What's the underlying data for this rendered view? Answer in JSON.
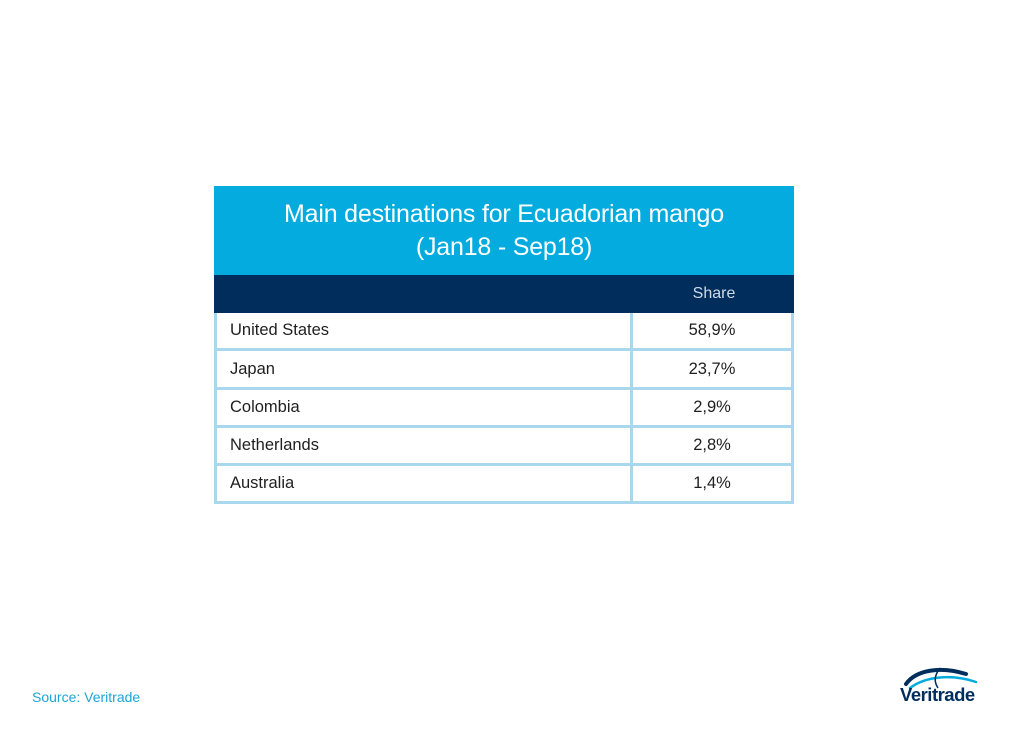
{
  "chart_data": {
    "type": "table",
    "title": "Main destinations for Ecuadorian mango (Jan18 - Sep18)",
    "columns": [
      "",
      "Share"
    ],
    "rows": [
      {
        "country": "United States",
        "share": "58,9%"
      },
      {
        "country": "Japan",
        "share": "23,7%"
      },
      {
        "country": "Colombia",
        "share": "2,9%"
      },
      {
        "country": "Netherlands",
        "share": "2,8%"
      },
      {
        "country": "Australia",
        "share": "1,4%"
      }
    ],
    "values": [
      58.9,
      23.7,
      2.9,
      2.8,
      1.4
    ]
  },
  "footer": {
    "source": "Source: Veritrade"
  },
  "logo": {
    "text": "Veritrade",
    "icon": "globe-swoosh-icon"
  },
  "colors": {
    "title_band": "#04ABDE",
    "header_band": "#002D5C",
    "grid": "#A9D7EE",
    "source_text": "#1BA6D8"
  }
}
